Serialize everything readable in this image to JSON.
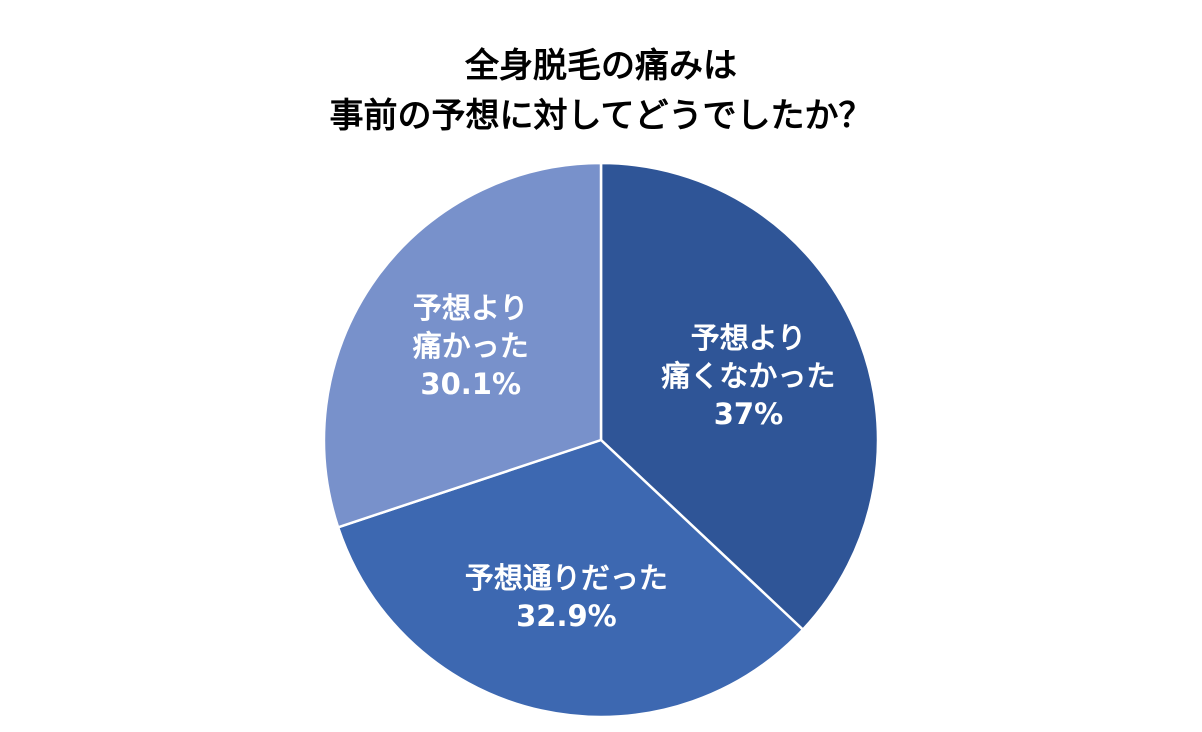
{
  "chart_data": {
    "type": "pie",
    "title": [
      "全身脱毛の痛みは",
      "事前の予想に対してどうでしたか？"
    ],
    "categories": [
      "予想より\n痛くなかった",
      "予想通りだった",
      "予想より\n痛かった"
    ],
    "values": [
      37,
      32.9,
      30.1
    ],
    "value_labels": [
      "37%",
      "32.9%",
      "30.1%"
    ],
    "colors": [
      "#2f5597",
      "#3d68b1",
      "#7891cb"
    ]
  }
}
